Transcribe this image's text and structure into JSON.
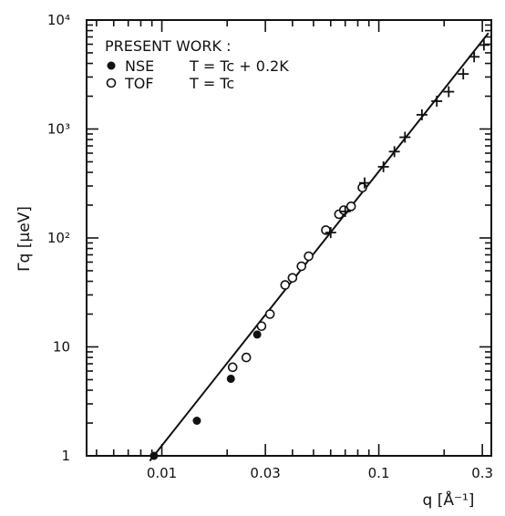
{
  "chart_data": {
    "type": "scatter",
    "title": "",
    "xlabel": "q [Å⁻¹]",
    "ylabel": "Γq [μeV]",
    "xscale": "log",
    "yscale": "log",
    "xlim": [
      0.0045,
      0.33
    ],
    "ylim": [
      1,
      10000
    ],
    "x_tick_labels": [
      {
        "value": 0.01,
        "label": "0.01"
      },
      {
        "value": 0.03,
        "label": "0.03"
      },
      {
        "value": 0.1,
        "label": "0.1"
      },
      {
        "value": 0.3,
        "label": "0.3"
      }
    ],
    "y_tick_labels": [
      {
        "value": 1,
        "label": "1"
      },
      {
        "value": 10,
        "label": "10"
      },
      {
        "value": 100,
        "label": "10²"
      },
      {
        "value": 1000,
        "label": "10³"
      },
      {
        "value": 10000,
        "label": "10⁴"
      }
    ],
    "legend": {
      "heading": "PRESENT WORK :",
      "placement": "top-left",
      "entries": [
        {
          "symbol": "filled-circle",
          "name": "NSE",
          "condition": "T = Tc + 0.2K"
        },
        {
          "symbol": "open-circle",
          "name": "TOF",
          "condition": "T = Tc"
        }
      ]
    },
    "series": [
      {
        "name": "NSE",
        "marker": "filled-circle",
        "points": [
          [
            0.0092,
            1.0
          ],
          [
            0.0145,
            2.1
          ],
          [
            0.0208,
            5.1
          ],
          [
            0.0275,
            13.0
          ]
        ]
      },
      {
        "name": "TOF",
        "marker": "open-circle",
        "points": [
          [
            0.0212,
            6.5
          ],
          [
            0.0245,
            8.0
          ],
          [
            0.0288,
            15.5
          ],
          [
            0.0315,
            20.0
          ],
          [
            0.037,
            37.0
          ],
          [
            0.04,
            43.0
          ],
          [
            0.044,
            55.0
          ],
          [
            0.0475,
            68.0
          ],
          [
            0.057,
            118.0
          ],
          [
            0.0655,
            165.0
          ],
          [
            0.069,
            180.0
          ],
          [
            0.0745,
            195.0
          ],
          [
            0.084,
            290.0
          ]
        ]
      },
      {
        "marker": "plus",
        "points": [
          [
            0.06,
            112.0
          ],
          [
            0.07,
            175.0
          ],
          [
            0.086,
            320.0
          ],
          [
            0.105,
            450.0
          ],
          [
            0.118,
            620.0
          ],
          [
            0.132,
            840.0
          ],
          [
            0.158,
            1350.0
          ],
          [
            0.185,
            1800.0
          ],
          [
            0.21,
            2200.0
          ],
          [
            0.245,
            3200.0
          ],
          [
            0.275,
            4600.0
          ],
          [
            0.305,
            5900.0
          ]
        ]
      }
    ],
    "fit_line": {
      "points": [
        [
          0.0088,
          0.9
        ],
        [
          0.32,
          7600.0
        ]
      ]
    }
  }
}
